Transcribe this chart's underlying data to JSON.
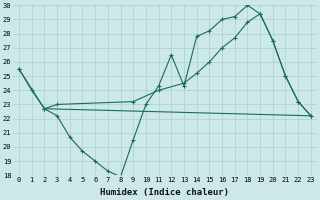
{
  "xlabel": "Humidex (Indice chaleur)",
  "xlim": [
    -0.5,
    23.5
  ],
  "ylim": [
    18,
    30
  ],
  "xticks": [
    0,
    1,
    2,
    3,
    4,
    5,
    6,
    7,
    8,
    9,
    10,
    11,
    12,
    13,
    14,
    15,
    16,
    17,
    18,
    19,
    20,
    21,
    22,
    23
  ],
  "yticks": [
    18,
    19,
    20,
    21,
    22,
    23,
    24,
    25,
    26,
    27,
    28,
    29,
    30
  ],
  "background_color": "#cde8e8",
  "grid_color": "#aacfcf",
  "line_color": "#1a6b5a",
  "line1_x": [
    0,
    1,
    2,
    3,
    4,
    5,
    6,
    7,
    8,
    9,
    10,
    11,
    12,
    13,
    14,
    15,
    16,
    17,
    18,
    19,
    20,
    21,
    22,
    23
  ],
  "line1_y": [
    25.5,
    24.0,
    22.7,
    22.2,
    20.7,
    19.7,
    19.0,
    18.3,
    17.9,
    20.5,
    23.0,
    24.3,
    26.5,
    24.3,
    27.8,
    28.2,
    29.0,
    29.2,
    30.0,
    29.4,
    27.5,
    25.0,
    23.2,
    22.2
  ],
  "line2_x": [
    0,
    2,
    3,
    9,
    11,
    13,
    14,
    15,
    16,
    17,
    18,
    19,
    20,
    21,
    22,
    23
  ],
  "line2_y": [
    25.5,
    22.7,
    23.0,
    23.2,
    24.0,
    24.5,
    25.2,
    26.0,
    27.0,
    27.7,
    28.8,
    29.4,
    27.5,
    25.0,
    23.2,
    22.2
  ],
  "line3_x": [
    2,
    23
  ],
  "line3_y": [
    22.7,
    22.2
  ]
}
